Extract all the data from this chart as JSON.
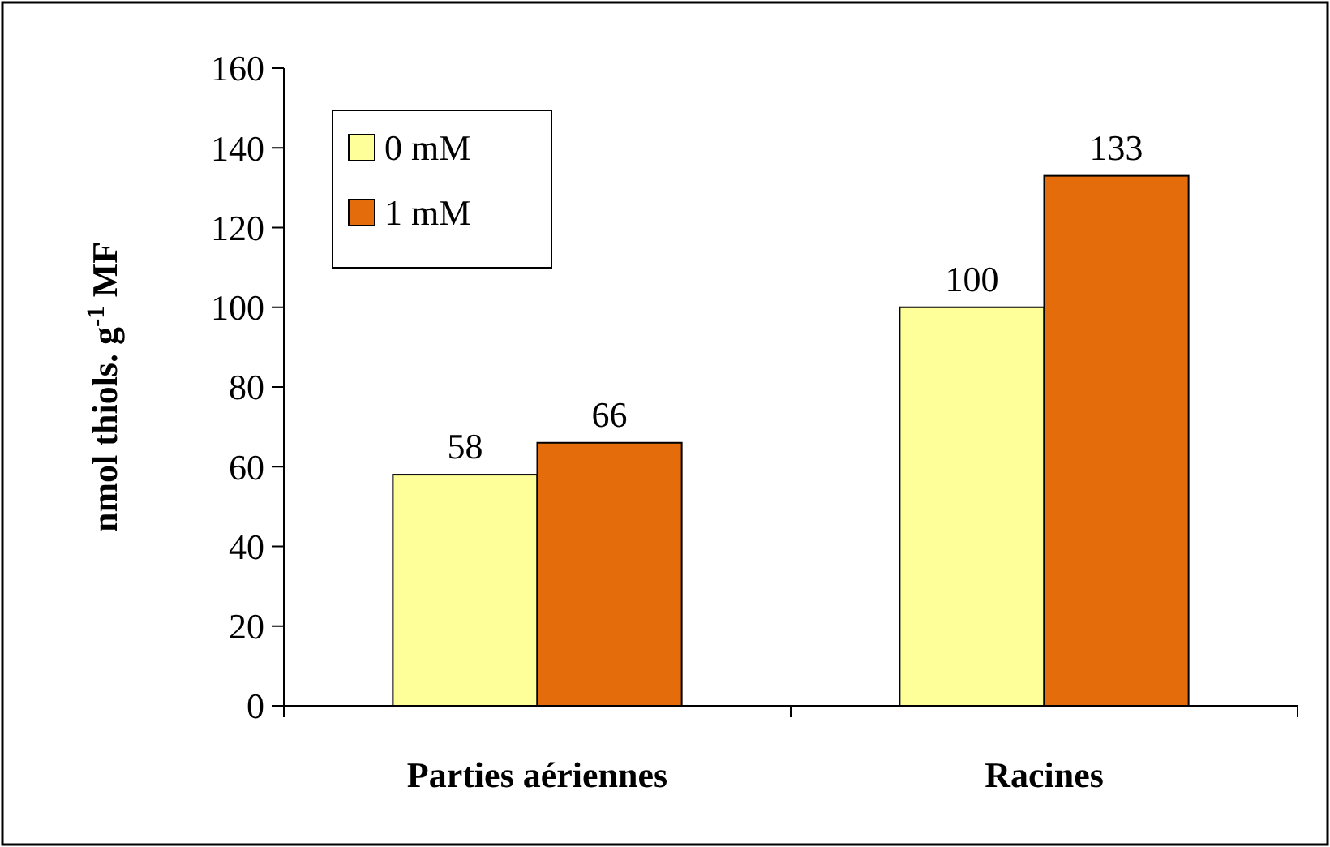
{
  "chart_data": {
    "type": "bar",
    "ylabel": "nmol thiols. g$^{-1}$ MF",
    "categories": [
      "Parties aériennes",
      "Racines"
    ],
    "series": [
      {
        "name": "0 mM",
        "color": "#ffff99",
        "values": [
          58,
          100
        ]
      },
      {
        "name": "1 mM",
        "color": "#e46c0a",
        "values": [
          66,
          133
        ]
      }
    ],
    "ylim": [
      0,
      160
    ],
    "yticks": [
      0,
      20,
      40,
      60,
      80,
      100,
      120,
      140,
      160
    ],
    "data_labels": true,
    "legend": "top left",
    "grid": false
  }
}
